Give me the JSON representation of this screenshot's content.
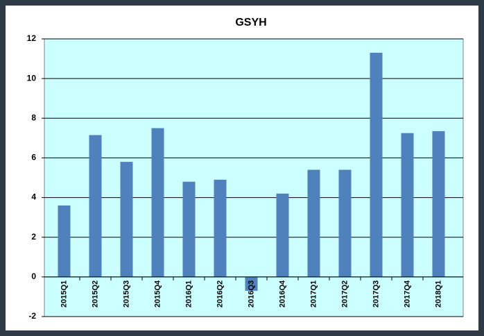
{
  "chart_data": {
    "type": "bar",
    "title": "GSYH",
    "categories": [
      "2015Q1",
      "2015Q2",
      "2015Q3",
      "2015Q4",
      "2016Q1",
      "2016Q2",
      "2016Q3",
      "2016Q4",
      "2017Q1",
      "2017Q2",
      "2017Q3",
      "2017Q4",
      "2018Q1"
    ],
    "values": [
      3.6,
      7.15,
      5.8,
      7.5,
      4.8,
      4.9,
      -0.7,
      4.2,
      5.4,
      5.4,
      11.3,
      7.25,
      7.35
    ],
    "color": "#4f81bd",
    "ylim": [
      -2,
      12
    ],
    "yticks": [
      -2,
      0,
      2,
      4,
      6,
      8,
      10,
      12
    ],
    "grid": true
  }
}
